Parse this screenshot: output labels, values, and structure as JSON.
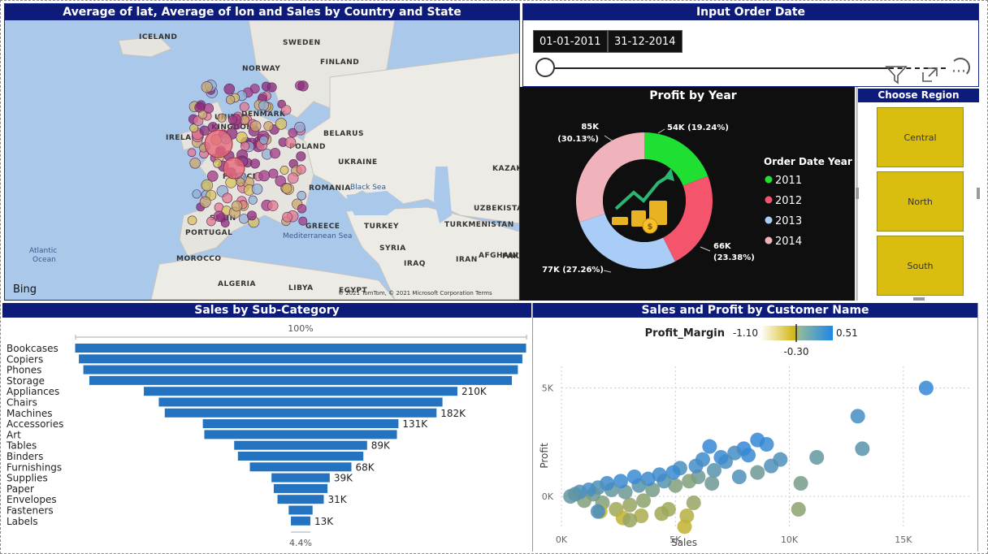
{
  "map": {
    "title": "Average of lat, Average of lon and Sales by Country and State",
    "labels": [
      "ICELAND",
      "SWEDEN",
      "FINLAND",
      "NORWAY",
      "DENMARK",
      "UNITED",
      "KINGDOM",
      "IRELAND",
      "BELARUS",
      "POLAND",
      "UKRAINE",
      "FRANCE",
      "ROMANIA",
      "SPAIN",
      "PORTUGAL",
      "GREECE",
      "TURKEY",
      "TURKMENISTAN",
      "UZBEKISTAN",
      "KAZAKH",
      "SYRIA",
      "IRAQ",
      "IRAN",
      "AFGHANIST",
      "PAKIS",
      "MOROCCO",
      "ALGERIA",
      "LIBYA",
      "EGYPT"
    ],
    "sea_labels": [
      "Black Sea",
      "Mediterranean Sea",
      "Atlantic",
      "Ocean"
    ],
    "logo": "Bing",
    "credits": "© 2021 TomTom, © 2021 Microsoft Corporation  Terms"
  },
  "date_slicer": {
    "title": "Input Order Date",
    "start": "01-01-2011",
    "end": "31-12-2014",
    "icons": [
      "filter-icon",
      "focus-mode-icon",
      "more-options-icon"
    ]
  },
  "profit_by_year": {
    "title": "Profit by Year",
    "legend_title": "Order Date Year",
    "slice_labels": [
      "54K (19.24%)",
      "66K",
      "(23.38%)",
      "77K (27.26%)",
      "85K",
      "(30.13%)"
    ]
  },
  "region": {
    "title": "Choose Region",
    "options": [
      "Central",
      "North",
      "South"
    ],
    "color": "#d9be10"
  },
  "subcategory": {
    "title": "Sales by Sub-Category",
    "top_pct": "100%",
    "bottom_pct": "4.4%"
  },
  "scatter": {
    "title": "Sales and Profit by Customer Name",
    "legend_title": "Profit_Margin",
    "min": "-1.10",
    "mid": "-0.30",
    "max": "0.51",
    "xlabel": "Sales",
    "ylabel": "Profit",
    "xticks": [
      "0K",
      "5K",
      "10K",
      "15K"
    ],
    "yticks": [
      "5K",
      "0K"
    ]
  },
  "chart_data": [
    {
      "type": "pie",
      "title": "Profit by Year",
      "legend_title": "Order Date Year",
      "categories": [
        "2011",
        "2012",
        "2013",
        "2014"
      ],
      "values": [
        54,
        66,
        77,
        85
      ],
      "percentages": [
        19.24,
        23.38,
        27.26,
        30.13
      ],
      "units": "K",
      "colors": [
        "#1fe032",
        "#f4546c",
        "#a9cdf7",
        "#f0b3bb"
      ],
      "donut": true
    },
    {
      "type": "bar",
      "title": "Sales by Sub-Category",
      "orientation": "horizontal-funnel",
      "categories": [
        "Bookcases",
        "Copiers",
        "Phones",
        "Storage",
        "Appliances",
        "Chairs",
        "Machines",
        "Accessories",
        "Art",
        "Tables",
        "Binders",
        "Furnishings",
        "Supplies",
        "Paper",
        "Envelopes",
        "Fasteners",
        "Labels"
      ],
      "values": [
        302,
        297,
        291,
        283,
        210,
        190,
        182,
        131,
        129,
        89,
        84,
        68,
        39,
        36,
        31,
        16,
        13
      ],
      "data_labels": [
        "",
        "",
        "",
        "",
        "210K",
        "",
        "182K",
        "131K",
        "",
        "89K",
        "",
        "68K",
        "39K",
        "",
        "31K",
        "",
        "13K"
      ],
      "color": "#2473c1"
    },
    {
      "type": "scatter",
      "title": "Sales and Profit by Customer Name",
      "xlabel": "Sales",
      "ylabel": "Profit",
      "xlim": [
        0,
        18000
      ],
      "ylim": [
        -1500,
        6000
      ],
      "color_scale": {
        "name": "Profit_Margin",
        "min": -1.1,
        "mid": -0.3,
        "max": 0.51,
        "colors": [
          "#d4b81a",
          "#2e86de"
        ]
      },
      "points": [
        [
          16000,
          5000,
          0.45
        ],
        [
          13000,
          3700,
          0.3
        ],
        [
          13200,
          2200,
          0.1
        ],
        [
          11200,
          1800,
          0.0
        ],
        [
          10500,
          600,
          -0.2
        ],
        [
          10400,
          -600,
          -0.4
        ],
        [
          9600,
          1700,
          0.2
        ],
        [
          9200,
          1400,
          0.2
        ],
        [
          9000,
          2400,
          0.4
        ],
        [
          8600,
          2600,
          0.45
        ],
        [
          8200,
          1900,
          0.4
        ],
        [
          8000,
          2200,
          0.45
        ],
        [
          7600,
          2000,
          0.3
        ],
        [
          7200,
          1600,
          0.25
        ],
        [
          7000,
          1800,
          0.4
        ],
        [
          6700,
          1200,
          0.1
        ],
        [
          6500,
          2300,
          0.45
        ],
        [
          6200,
          1700,
          0.35
        ],
        [
          6000,
          900,
          -0.1
        ],
        [
          5900,
          1400,
          0.3
        ],
        [
          5600,
          700,
          -0.3
        ],
        [
          5500,
          -900,
          -0.8
        ],
        [
          5400,
          -1400,
          -0.9
        ],
        [
          5200,
          1300,
          0.25
        ],
        [
          5000,
          500,
          -0.3
        ],
        [
          4900,
          1100,
          0.4
        ],
        [
          4700,
          -600,
          -0.6
        ],
        [
          4500,
          700,
          0.1
        ],
        [
          4300,
          1000,
          0.35
        ],
        [
          4000,
          300,
          -0.2
        ],
        [
          3800,
          800,
          0.4
        ],
        [
          3600,
          -200,
          -0.4
        ],
        [
          3400,
          500,
          0.1
        ],
        [
          3200,
          900,
          0.4
        ],
        [
          3000,
          -400,
          -0.5
        ],
        [
          2800,
          200,
          -0.1
        ],
        [
          2600,
          700,
          0.4
        ],
        [
          2400,
          -600,
          -0.6
        ],
        [
          2200,
          300,
          0.0
        ],
        [
          2000,
          600,
          0.35
        ],
        [
          1800,
          -300,
          -0.3
        ],
        [
          1600,
          400,
          0.2
        ],
        [
          1400,
          100,
          -0.1
        ],
        [
          1200,
          300,
          0.3
        ],
        [
          1000,
          -200,
          -0.3
        ],
        [
          800,
          200,
          0.2
        ],
        [
          600,
          100,
          0.1
        ],
        [
          400,
          0,
          0.0
        ],
        [
          1700,
          -700,
          -1.0
        ],
        [
          2700,
          -1000,
          -0.9
        ],
        [
          3500,
          -900,
          -0.7
        ],
        [
          6600,
          600,
          -0.1
        ],
        [
          7800,
          900,
          0.2
        ],
        [
          8600,
          1100,
          -0.1
        ],
        [
          5800,
          -300,
          -0.5
        ],
        [
          4400,
          -800,
          -0.6
        ],
        [
          3000,
          -1100,
          -0.5
        ],
        [
          1600,
          -700,
          0.3
        ]
      ]
    }
  ]
}
